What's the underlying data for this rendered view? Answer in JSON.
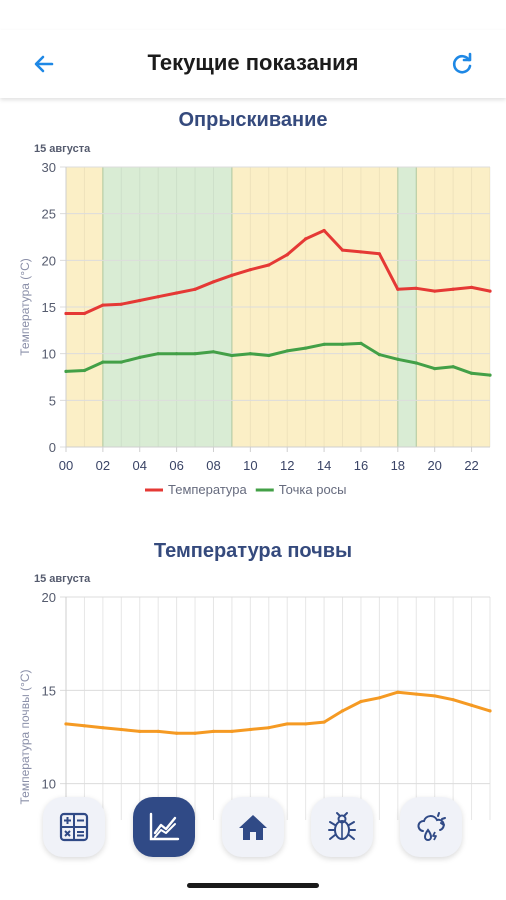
{
  "header": {
    "title": "Текущие показания",
    "back_icon": "arrow-left-icon",
    "refresh_icon": "refresh-icon",
    "accent": "#1e88e5"
  },
  "chart1": {
    "section_title": "Опрыскивание",
    "date_label": "15 августа"
  },
  "chart2": {
    "section_title": "Температура почвы",
    "date_label": "15 августа"
  },
  "nav": {
    "items": [
      {
        "name": "calculator-icon",
        "active": false
      },
      {
        "name": "chart-icon",
        "active": true
      },
      {
        "name": "home-icon",
        "active": false
      },
      {
        "name": "bug-icon",
        "active": false
      },
      {
        "name": "weather-icon",
        "active": false
      }
    ]
  },
  "chart_data": [
    {
      "type": "line",
      "title": "Опрыскивание",
      "date": "15 августа",
      "ylabel": "Температура (°C)",
      "xlabel": "",
      "ylim": [
        0,
        30
      ],
      "yticks": [
        "0",
        "5",
        "10",
        "15",
        "20",
        "25",
        "30"
      ],
      "xlim": [
        0,
        23
      ],
      "xticks": [
        "00",
        "02",
        "04",
        "06",
        "08",
        "10",
        "12",
        "14",
        "16",
        "18",
        "20",
        "22"
      ],
      "grid": true,
      "legend_position": "bottom",
      "bands": [
        {
          "from": 0,
          "to": 2,
          "color": "#fbefc6"
        },
        {
          "from": 2,
          "to": 9,
          "color": "#d9ecd4"
        },
        {
          "from": 9,
          "to": 18,
          "color": "#fbefc6"
        },
        {
          "from": 18,
          "to": 19,
          "color": "#d9ecd4"
        },
        {
          "from": 19,
          "to": 23,
          "color": "#fbefc6"
        }
      ],
      "x": [
        0,
        1,
        2,
        3,
        4,
        5,
        6,
        7,
        8,
        9,
        10,
        11,
        12,
        13,
        14,
        15,
        16,
        17,
        18,
        19,
        20,
        21,
        22,
        23
      ],
      "series": [
        {
          "name": "Температура",
          "color": "#e53935",
          "values": [
            14.3,
            14.3,
            15.2,
            15.3,
            15.7,
            16.1,
            16.5,
            16.9,
            17.7,
            18.4,
            19.0,
            19.5,
            20.6,
            22.3,
            23.2,
            21.1,
            20.9,
            20.7,
            16.9,
            17.0,
            16.7,
            16.9,
            17.1,
            16.7
          ]
        },
        {
          "name": "Точка росы",
          "color": "#43a047",
          "values": [
            8.1,
            8.2,
            9.1,
            9.1,
            9.6,
            10.0,
            10.0,
            10.0,
            10.2,
            9.8,
            10.0,
            9.8,
            10.3,
            10.6,
            11.0,
            11.0,
            11.1,
            9.9,
            9.4,
            9.0,
            8.4,
            8.6,
            7.9,
            7.7
          ]
        }
      ]
    },
    {
      "type": "line",
      "title": "Температура почвы",
      "date": "15 августа",
      "ylabel": "Температура почвы (°C)",
      "xlabel": "",
      "ylim": [
        5,
        20
      ],
      "yticks": [
        "10",
        "15",
        "20"
      ],
      "xlim": [
        0,
        23
      ],
      "grid": true,
      "x": [
        0,
        1,
        2,
        3,
        4,
        5,
        6,
        7,
        8,
        9,
        10,
        11,
        12,
        13,
        14,
        15,
        16,
        17,
        18,
        19,
        20,
        21,
        22,
        23
      ],
      "series": [
        {
          "name": "",
          "color": "#f59a23",
          "values": [
            13.2,
            13.1,
            13.0,
            12.9,
            12.8,
            12.8,
            12.7,
            12.7,
            12.8,
            12.8,
            12.9,
            13.0,
            13.2,
            13.2,
            13.3,
            13.9,
            14.4,
            14.6,
            14.9,
            14.8,
            14.7,
            14.5,
            14.2,
            13.9
          ]
        }
      ]
    }
  ]
}
